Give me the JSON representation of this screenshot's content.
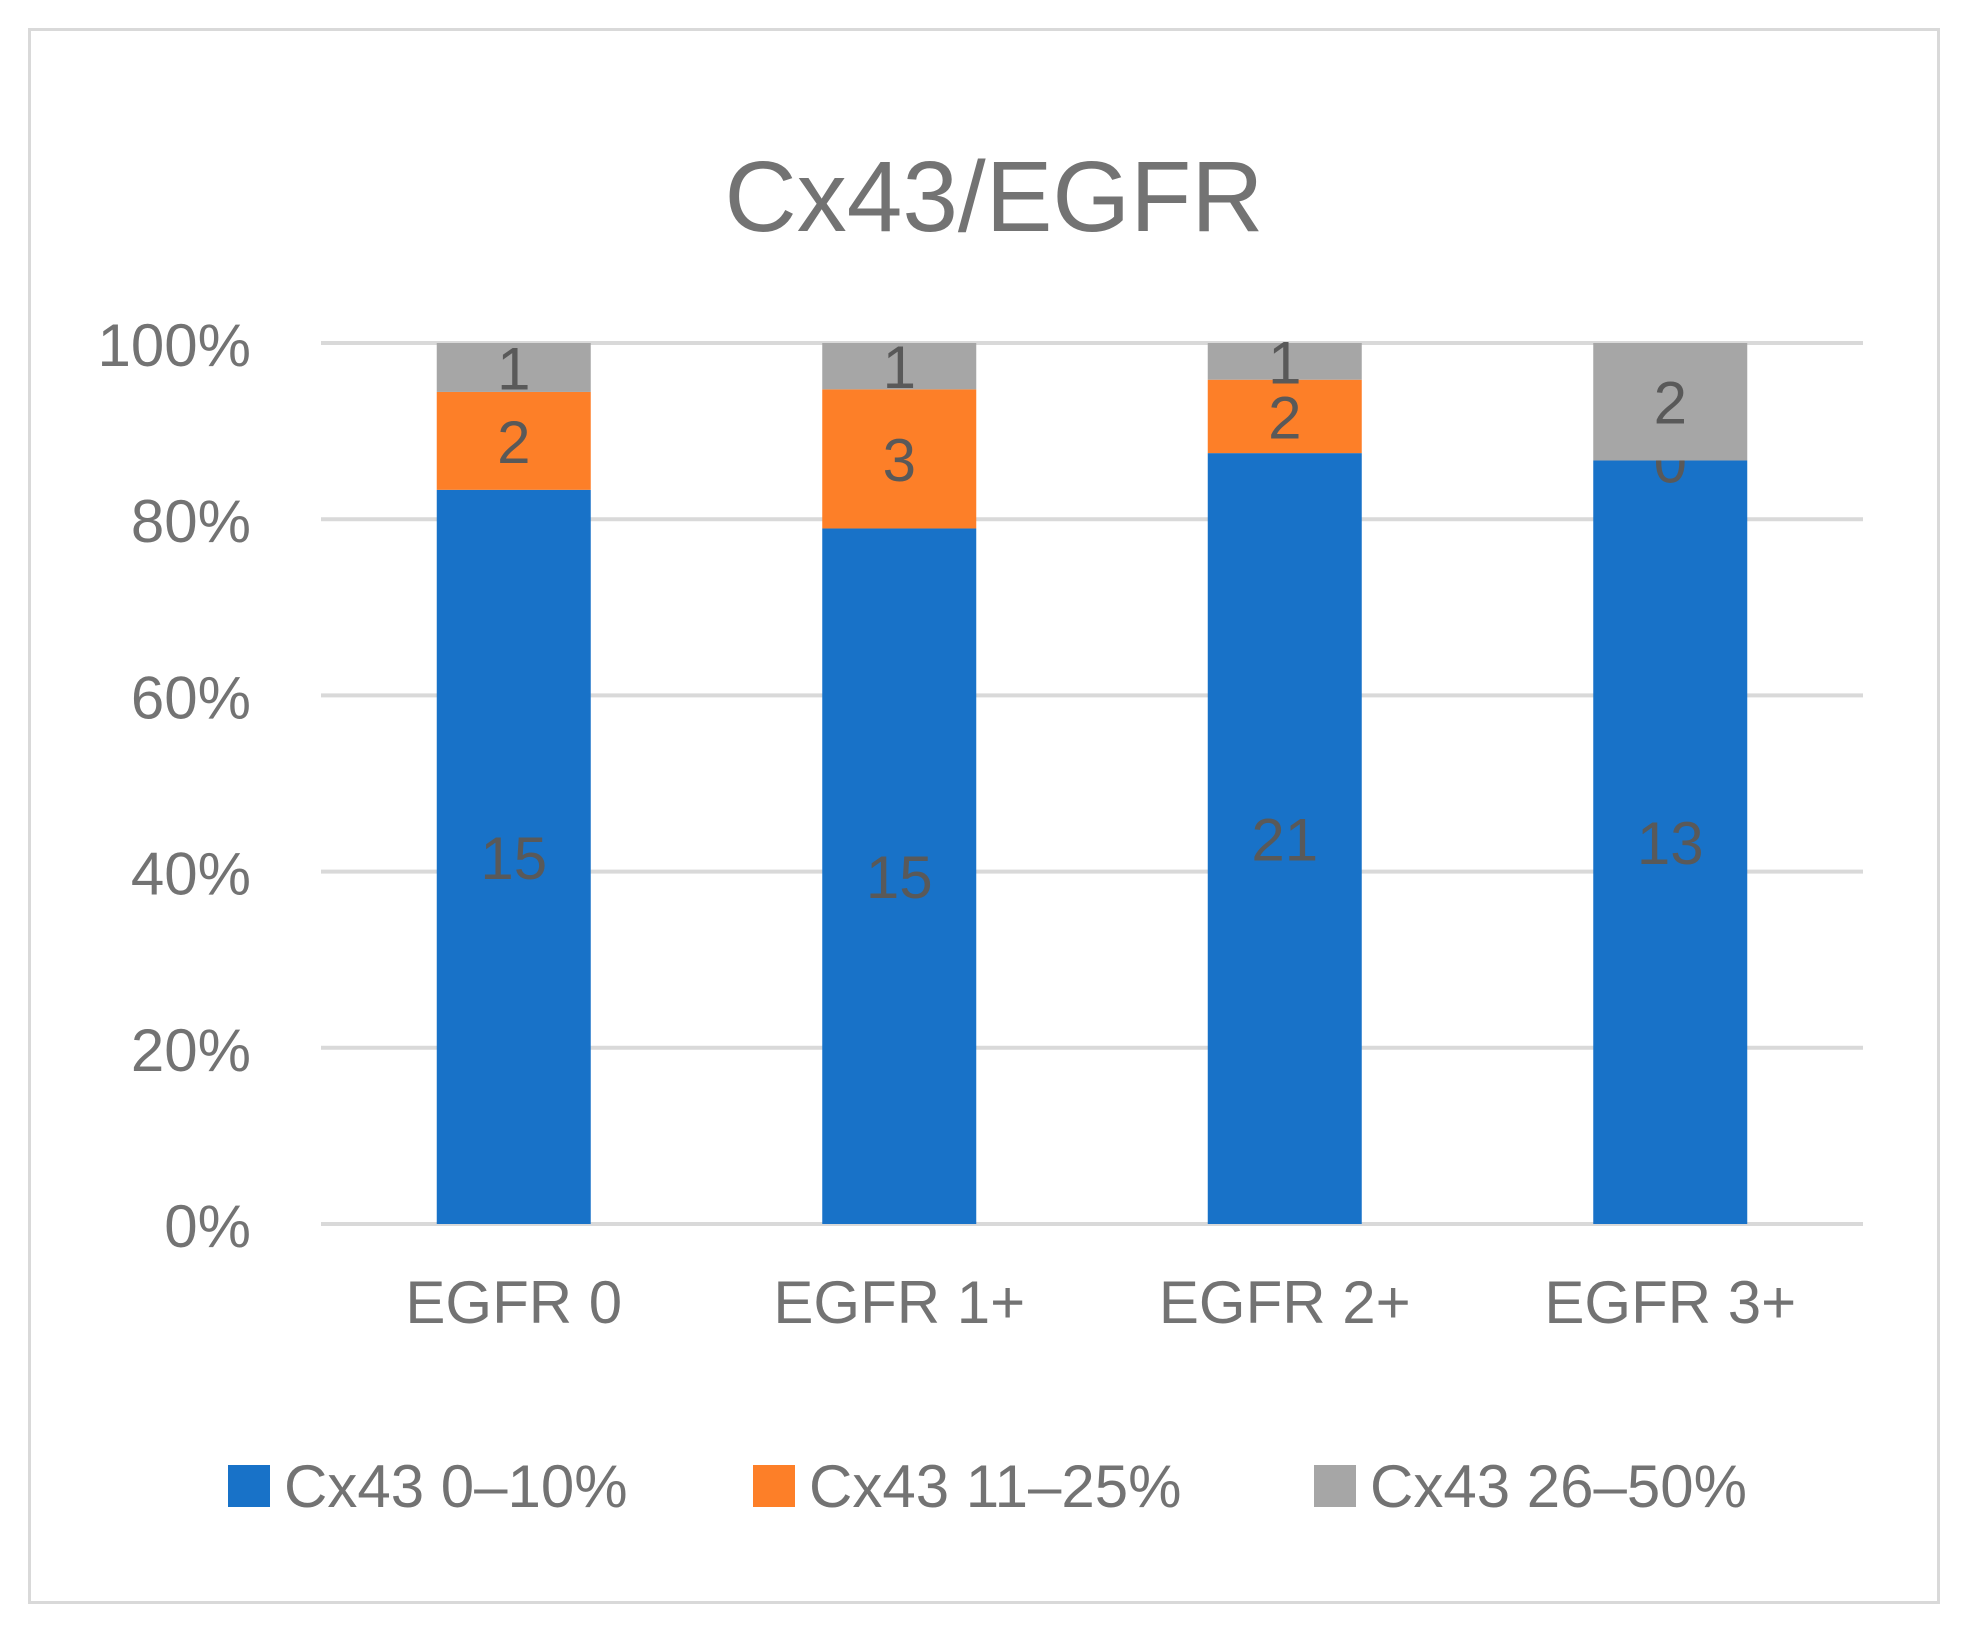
{
  "chart_data": {
    "type": "bar",
    "stacked": true,
    "normalized": true,
    "title": "Cx43/EGFR",
    "categories": [
      "EGFR 0",
      "EGFR 1+",
      "EGFR  2+",
      "EGFR 3+"
    ],
    "series": [
      {
        "name": "Cx43 0–10%",
        "color": "#1872c8",
        "values": [
          15,
          15,
          21,
          13
        ]
      },
      {
        "name": "Cx43 11–25%",
        "color": "#fd7f28",
        "values": [
          2,
          3,
          2,
          0
        ]
      },
      {
        "name": "Cx43 26–50%",
        "color": "#a6a6a6",
        "values": [
          1,
          1,
          1,
          2
        ]
      }
    ],
    "y_ticks": [
      "0%",
      "20%",
      "40%",
      "60%",
      "80%",
      "100%"
    ],
    "ylim": [
      0,
      100
    ],
    "grid": true,
    "legend": "bottom",
    "xlabel": "",
    "ylabel": ""
  }
}
